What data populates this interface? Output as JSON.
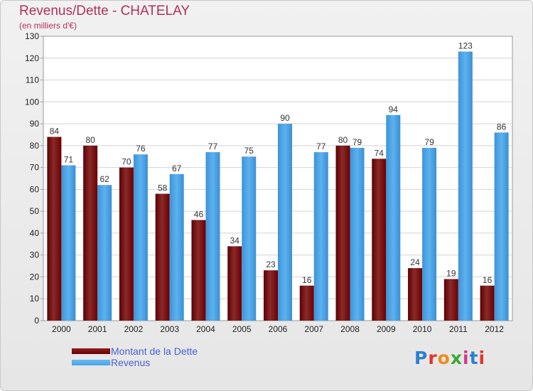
{
  "header": {
    "title": "Revenus/Dette - CHATELAY",
    "subtitle": "(en milliers d'€)"
  },
  "colors": {
    "dette": "#7a1010",
    "revenus": "#4aa3e6",
    "title": "#b0305e",
    "legend_text": "#4a5fd8"
  },
  "legend": [
    {
      "label": "Montant de la Dette",
      "color": "#6b0000"
    },
    {
      "label": "Revenus",
      "color": "#4aa3e6"
    }
  ],
  "logo": {
    "text": "Proxiti",
    "letter_colors": [
      "#2d7fd0",
      "#e0342a",
      "#f08a1c",
      "#3aaa35",
      "#d23a8a",
      "#2d7fd0",
      "#e0342a"
    ]
  },
  "chart_data": {
    "type": "bar",
    "title": "Revenus/Dette - CHATELAY",
    "subtitle": "(en milliers d'€)",
    "categories": [
      "2000",
      "2001",
      "2002",
      "2003",
      "2004",
      "2005",
      "2006",
      "2007",
      "2008",
      "2009",
      "2010",
      "2011",
      "2012"
    ],
    "series": [
      {
        "name": "Montant de la Dette",
        "values": [
          84,
          80,
          70,
          58,
          46,
          34,
          23,
          16,
          80,
          74,
          24,
          19,
          16
        ]
      },
      {
        "name": "Revenus",
        "values": [
          71,
          62,
          76,
          67,
          77,
          75,
          90,
          77,
          79,
          94,
          79,
          123,
          86
        ]
      }
    ],
    "ylim": [
      0,
      130
    ],
    "yticks": [
      0,
      10,
      20,
      30,
      40,
      50,
      60,
      70,
      80,
      90,
      100,
      110,
      120,
      130
    ],
    "grid": true,
    "legend_position": "bottom-left"
  }
}
